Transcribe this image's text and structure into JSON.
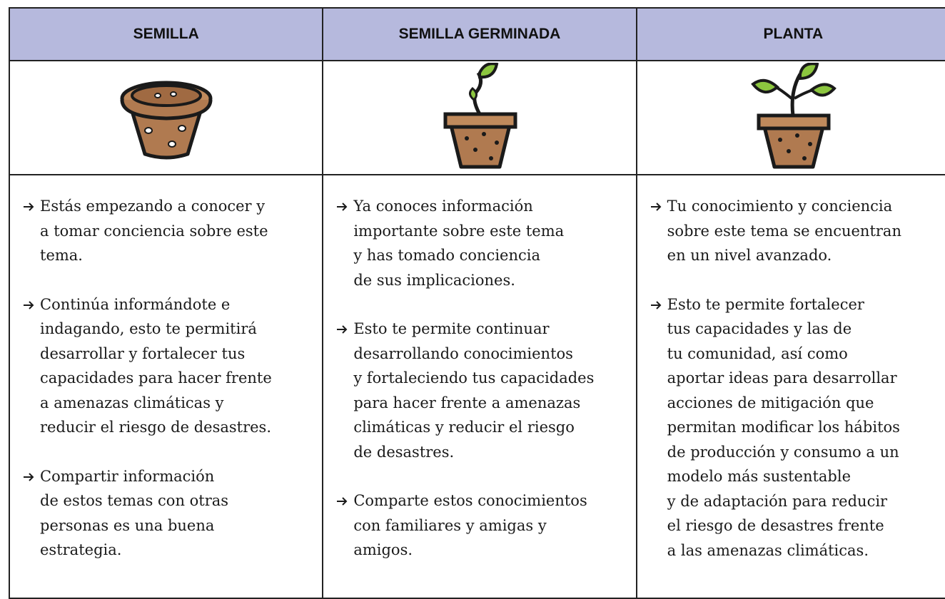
{
  "table": {
    "headers": [
      "SEMILLA",
      "SEMILLA GERMINADA",
      "PLANTA"
    ],
    "columns": [
      [
        [
          "Estás empezando a conocer y",
          "a tomar conciencia sobre este",
          "tema."
        ],
        [
          "Continúa informándote e",
          "indagando, esto te permitirá",
          "desarrollar y fortalecer tus",
          "capacidades para hacer frente",
          "a amenazas climáticas y",
          "reducir el riesgo de desastres."
        ],
        [
          "Compartir información",
          "de estos temas con otras",
          "personas es una buena",
          "estrategia."
        ]
      ],
      [
        [
          "Ya conoces información",
          "importante sobre este tema",
          "y has tomado conciencia",
          "de sus implicaciones."
        ],
        [
          "Esto te permite continuar",
          "desarrollando conocimientos",
          "y fortaleciendo tus capacidades",
          "para hacer frente a amenazas",
          "climáticas y reducir el riesgo",
          "de desastres."
        ],
        [
          "Comparte estos conocimientos",
          "con familiares y amigas y",
          "amigos."
        ]
      ],
      [
        [
          "Tu conocimiento y conciencia",
          "sobre este tema se encuentran",
          "en un nivel avanzado."
        ],
        [
          "Esto te permite fortalecer",
          "tus capacidades y las de",
          "tu comunidad, así como",
          "aportar ideas para desarrollar",
          "acciones de mitigación que",
          "permitan modificar los hábitos",
          "de producción y consumo a un",
          "modelo más sustentable",
          "y de adaptación para reducir",
          "el riesgo de desastres frente",
          "a las amenazas climáticas."
        ]
      ]
    ]
  }
}
